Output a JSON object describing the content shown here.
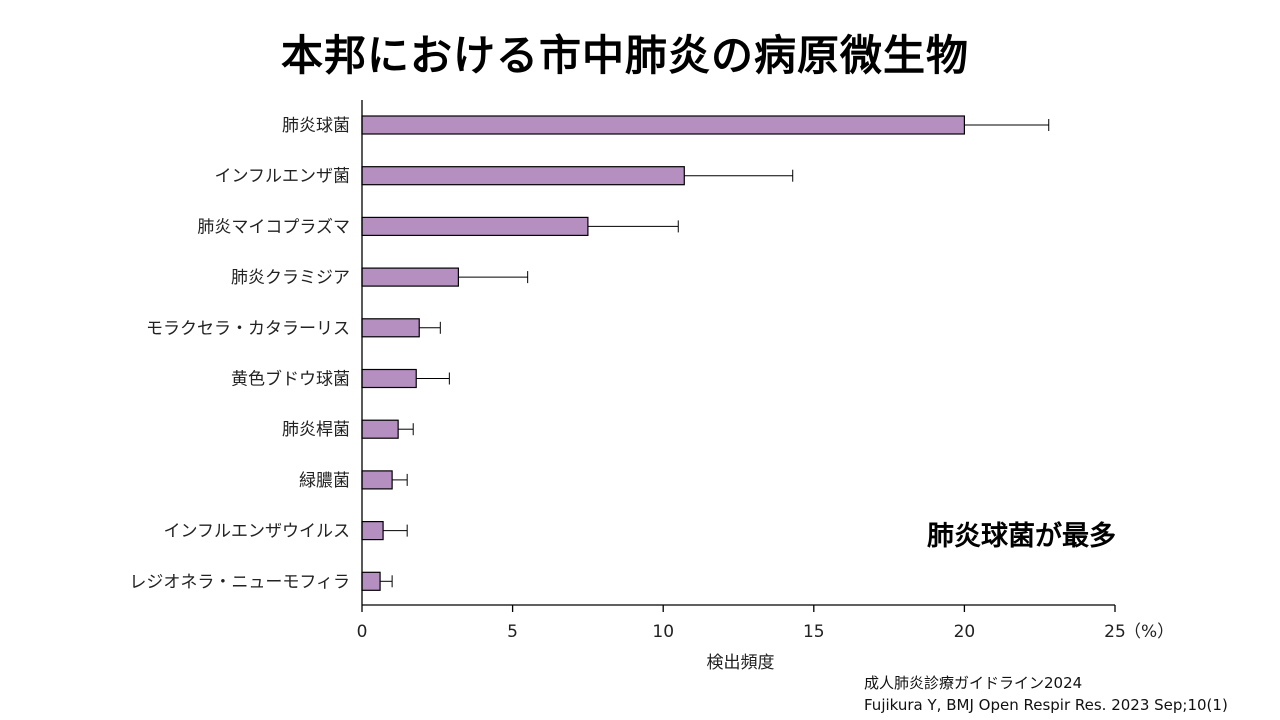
{
  "slide": {
    "title": "本邦における市中肺炎の病原微生物",
    "callout": "肺炎球菌が最多",
    "source_line1": "成人肺炎診療ガイドライン2024",
    "source_line2": "Fujikura Y, BMJ Open Respir Res. 2023 Sep;10(1)"
  },
  "chart_data": {
    "type": "bar",
    "orientation": "horizontal",
    "title": "本邦における市中肺炎の病原微生物",
    "xlabel": "検出頻度",
    "ylabel": "",
    "xlim": [
      0,
      25
    ],
    "xticks": [
      0,
      5,
      10,
      15,
      20,
      25
    ],
    "unit_label": "（%）",
    "categories": [
      "肺炎球菌",
      "インフルエンザ菌",
      "肺炎マイコプラズマ",
      "肺炎クラミジア",
      "モラクセラ・カタラーリス",
      "黄色ブドウ球菌",
      "肺炎桿菌",
      "緑膿菌",
      "インフルエンザウイルス",
      "レジオネラ・ニューモフィラ"
    ],
    "values": [
      20.0,
      10.7,
      7.5,
      3.2,
      1.9,
      1.8,
      1.2,
      1.0,
      0.7,
      0.6
    ],
    "error_upper": [
      22.8,
      14.3,
      10.5,
      5.5,
      2.6,
      2.9,
      1.7,
      1.5,
      1.5,
      1.0
    ],
    "bar_color": "#b48fc0",
    "bar_edge_color": "#000000",
    "grid": false
  }
}
